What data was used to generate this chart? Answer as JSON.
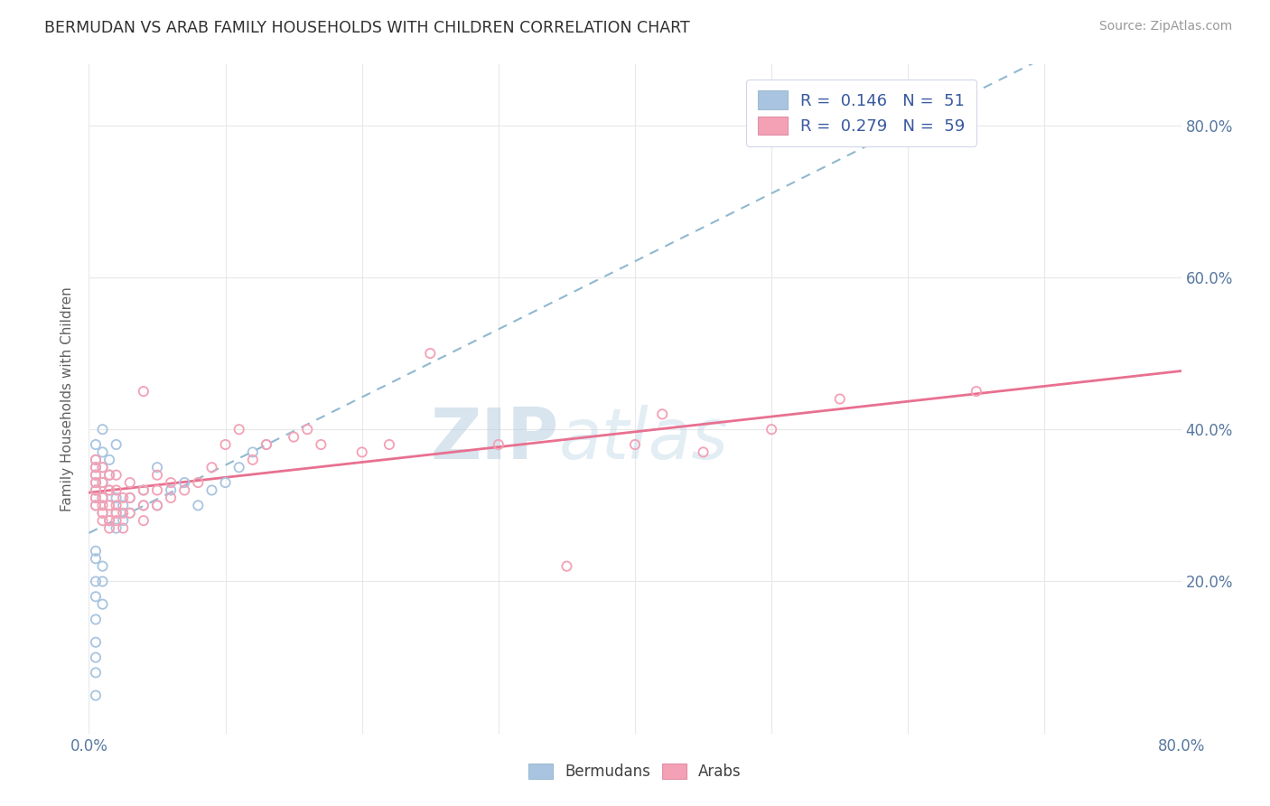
{
  "title": "BERMUDAN VS ARAB FAMILY HOUSEHOLDS WITH CHILDREN CORRELATION CHART",
  "source": "Source: ZipAtlas.com",
  "ylabel": "Family Households with Children",
  "xlim": [
    0.0,
    0.8
  ],
  "ylim": [
    0.0,
    0.88
  ],
  "xticks": [
    0.0,
    0.1,
    0.2,
    0.3,
    0.4,
    0.5,
    0.6,
    0.7,
    0.8
  ],
  "xticklabels": [
    "0.0%",
    "",
    "",
    "",
    "",
    "",
    "",
    "",
    "80.0%"
  ],
  "yticks": [
    0.0,
    0.2,
    0.4,
    0.6,
    0.8
  ],
  "yticklabels": [
    "",
    "20.0%",
    "40.0%",
    "60.0%",
    "80.0%"
  ],
  "bermudan_color": "#a8c4e0",
  "arab_color": "#f4a0b5",
  "bermudan_line_color": "#90b8d0",
  "arab_line_color": "#e87090",
  "R_bermudan": 0.146,
  "N_bermudan": 51,
  "R_arab": 0.279,
  "N_arab": 59,
  "watermark_zip": "ZIP",
  "watermark_atlas": "atlas",
  "background_color": "#ffffff",
  "grid_color": "#e8e8e8",
  "title_color": "#303030",
  "axis_label_color": "#5878a0",
  "legend_text_color": "#3858a0",
  "bermudan_x": [
    0.005,
    0.005,
    0.005,
    0.005,
    0.005,
    0.005,
    0.005,
    0.005,
    0.01,
    0.01,
    0.01,
    0.01,
    0.01,
    0.01,
    0.015,
    0.015,
    0.015,
    0.015,
    0.015,
    0.02,
    0.02,
    0.02,
    0.02,
    0.025,
    0.025,
    0.03,
    0.03,
    0.04,
    0.04,
    0.05,
    0.05,
    0.06,
    0.07,
    0.08,
    0.09,
    0.1,
    0.11,
    0.12,
    0.13,
    0.005,
    0.005,
    0.005,
    0.005,
    0.005,
    0.01,
    0.01,
    0.01,
    0.005,
    0.005,
    0.005,
    0.005
  ],
  "bermudan_y": [
    0.3,
    0.31,
    0.32,
    0.33,
    0.34,
    0.35,
    0.36,
    0.38,
    0.29,
    0.31,
    0.33,
    0.35,
    0.37,
    0.4,
    0.28,
    0.3,
    0.32,
    0.34,
    0.36,
    0.27,
    0.29,
    0.31,
    0.38,
    0.28,
    0.3,
    0.29,
    0.31,
    0.3,
    0.32,
    0.3,
    0.35,
    0.32,
    0.33,
    0.3,
    0.32,
    0.33,
    0.35,
    0.37,
    0.38,
    0.23,
    0.24,
    0.2,
    0.18,
    0.15,
    0.22,
    0.2,
    0.17,
    0.12,
    0.1,
    0.08,
    0.05
  ],
  "arab_x": [
    0.005,
    0.005,
    0.005,
    0.005,
    0.005,
    0.005,
    0.005,
    0.01,
    0.01,
    0.01,
    0.01,
    0.01,
    0.01,
    0.015,
    0.015,
    0.015,
    0.015,
    0.015,
    0.02,
    0.02,
    0.02,
    0.02,
    0.02,
    0.025,
    0.025,
    0.025,
    0.03,
    0.03,
    0.03,
    0.04,
    0.04,
    0.04,
    0.04,
    0.05,
    0.05,
    0.05,
    0.06,
    0.06,
    0.07,
    0.08,
    0.09,
    0.1,
    0.11,
    0.12,
    0.13,
    0.15,
    0.16,
    0.17,
    0.2,
    0.22,
    0.25,
    0.3,
    0.35,
    0.4,
    0.42,
    0.45,
    0.5,
    0.55,
    0.65
  ],
  "arab_y": [
    0.3,
    0.31,
    0.32,
    0.33,
    0.34,
    0.35,
    0.36,
    0.28,
    0.29,
    0.3,
    0.31,
    0.33,
    0.35,
    0.27,
    0.28,
    0.3,
    0.32,
    0.34,
    0.28,
    0.29,
    0.3,
    0.32,
    0.34,
    0.27,
    0.29,
    0.31,
    0.29,
    0.31,
    0.33,
    0.28,
    0.3,
    0.32,
    0.45,
    0.3,
    0.32,
    0.34,
    0.31,
    0.33,
    0.32,
    0.33,
    0.35,
    0.38,
    0.4,
    0.36,
    0.38,
    0.39,
    0.4,
    0.38,
    0.37,
    0.38,
    0.5,
    0.38,
    0.22,
    0.38,
    0.42,
    0.37,
    0.4,
    0.44,
    0.45
  ]
}
